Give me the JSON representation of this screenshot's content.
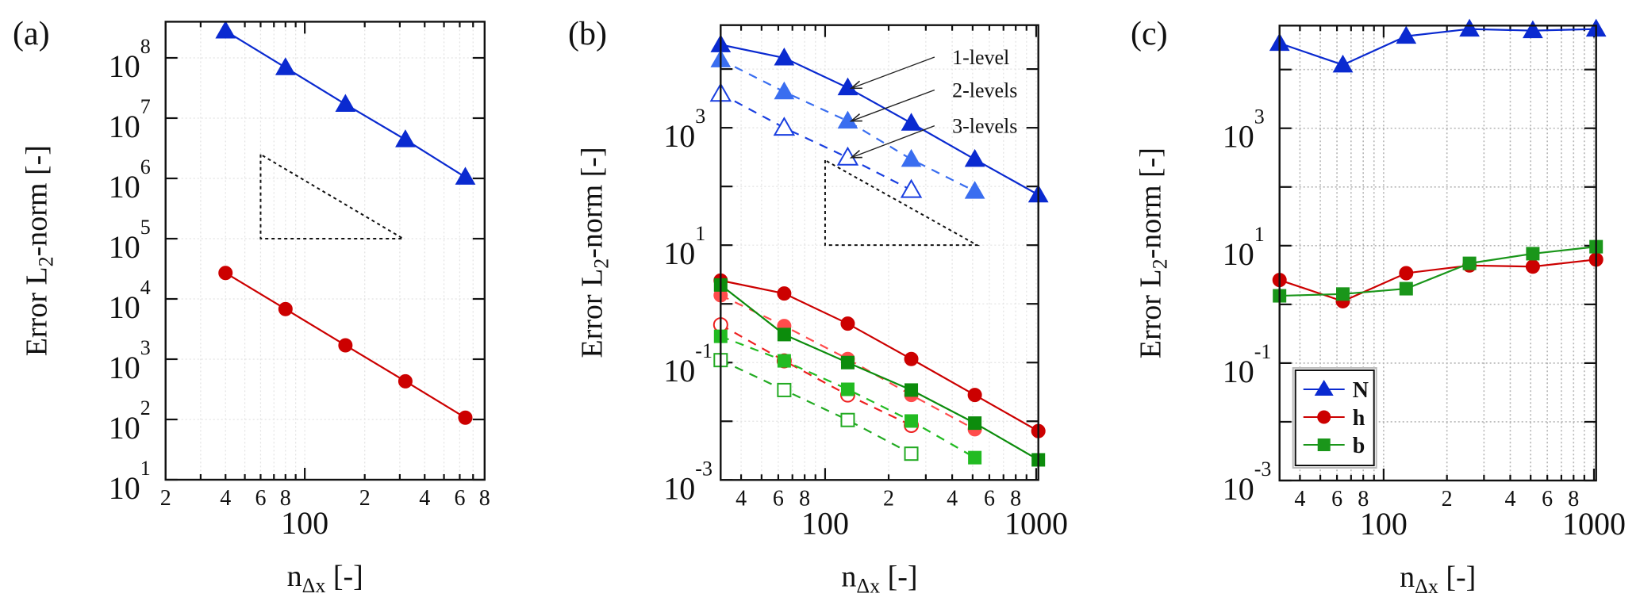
{
  "chart_data": [
    {
      "panel": "(a)",
      "type": "line",
      "scale": "log-log",
      "xlabel": {
        "main": "n",
        "sub": "Δx",
        "rest": " [-]"
      },
      "ylabel": {
        "main": "Error L",
        "sub": "2",
        "rest": "-norm [-]"
      },
      "xlim": [
        20,
        800
      ],
      "ylim": [
        10,
        398000000
      ],
      "grid": "faint",
      "xticks": [
        {
          "value": 20,
          "label": "2"
        },
        {
          "value": 40,
          "label": "4"
        },
        {
          "value": 60,
          "label": "6"
        },
        {
          "value": 80,
          "label": "8"
        },
        {
          "value": 100,
          "label": "100",
          "major": true
        },
        {
          "value": 200,
          "label": "2"
        },
        {
          "value": 400,
          "label": "4"
        },
        {
          "value": 600,
          "label": "6"
        },
        {
          "value": 800,
          "label": "8"
        }
      ],
      "yticks": [
        {
          "value": 10,
          "base": "10",
          "exp": "1"
        },
        {
          "value": 100,
          "base": "10",
          "exp": "2"
        },
        {
          "value": 1000,
          "base": "10",
          "exp": "3"
        },
        {
          "value": 10000,
          "base": "10",
          "exp": "4"
        },
        {
          "value": 100000,
          "base": "10",
          "exp": "5"
        },
        {
          "value": 1000000,
          "base": "10",
          "exp": "6"
        },
        {
          "value": 10000000,
          "base": "10",
          "exp": "7"
        },
        {
          "value": 100000000,
          "base": "10",
          "exp": "8"
        }
      ],
      "series": [
        {
          "name": "N",
          "x": [
            40,
            80,
            160,
            320,
            640
          ],
          "y": [
            280000000,
            69000000,
            17000000,
            4400000,
            1050000
          ],
          "color": "#0a2ad0",
          "dash": "solid",
          "marker": "triangle",
          "fill": "filled"
        },
        {
          "name": "h",
          "x": [
            40,
            80,
            160,
            320,
            640
          ],
          "y": [
            27000,
            6800,
            1700,
            430,
            107
          ],
          "color": "#cc0000",
          "dash": "solid",
          "marker": "circle",
          "fill": "filled"
        }
      ],
      "slope_triangle": {
        "points": [
          [
            60,
            2500000
          ],
          [
            60,
            100000
          ],
          [
            312,
            100000
          ]
        ],
        "slope": -2
      }
    },
    {
      "panel": "(b)",
      "type": "line",
      "scale": "log-log",
      "xlabel": {
        "main": "n",
        "sub": "Δx",
        "rest": " [-]"
      },
      "ylabel": {
        "main": "Error L",
        "sub": "2",
        "rest": "-norm [-]"
      },
      "xlim": [
        32,
        1024
      ],
      "ylim": [
        0.001,
        56000
      ],
      "grid": "faint",
      "xticks": [
        {
          "value": 40,
          "label": "4"
        },
        {
          "value": 60,
          "label": "6"
        },
        {
          "value": 80,
          "label": "8"
        },
        {
          "value": 100,
          "label": "100",
          "major": true
        },
        {
          "value": 200,
          "label": "2"
        },
        {
          "value": 400,
          "label": "4"
        },
        {
          "value": 600,
          "label": "6"
        },
        {
          "value": 800,
          "label": "8"
        },
        {
          "value": 1000,
          "label": "1000",
          "major": true
        }
      ],
      "yticks": [
        {
          "value": 0.001,
          "base": "10",
          "exp": "-3"
        },
        {
          "value": 0.01
        },
        {
          "value": 0.1,
          "base": "10",
          "exp": "-1"
        },
        {
          "value": 1
        },
        {
          "value": 10,
          "base": "10",
          "exp": "1"
        },
        {
          "value": 100
        },
        {
          "value": 1000,
          "base": "10",
          "exp": "3"
        },
        {
          "value": 10000
        }
      ],
      "series": [
        {
          "name": "N 1-level",
          "x": [
            32,
            64,
            128,
            256,
            512,
            1024
          ],
          "y": [
            26000,
            15500,
            4800,
            1200,
            290,
            72
          ],
          "color": "#0a2ad0",
          "dash": "solid",
          "marker": "triangle",
          "fill": "filled"
        },
        {
          "name": "N 2-levels",
          "x": [
            32,
            64,
            128,
            256,
            512
          ],
          "y": [
            14400,
            4100,
            1300,
            290,
            83
          ],
          "color": "#3a6ef0",
          "dash": "dashed",
          "marker": "triangle",
          "fill": "light"
        },
        {
          "name": "N 3-levels",
          "x": [
            32,
            64,
            128,
            256
          ],
          "y": [
            3800,
            1000,
            310,
            87
          ],
          "color": "#1a3fe0",
          "dash": "dashed",
          "marker": "triangle",
          "fill": "hollow"
        },
        {
          "name": "h 1-level",
          "x": [
            32,
            64,
            128,
            256,
            512,
            1024
          ],
          "y": [
            2.5,
            1.5,
            0.46,
            0.115,
            0.028,
            0.0068
          ],
          "color": "#cc0000",
          "dash": "solid",
          "marker": "circle",
          "fill": "filled"
        },
        {
          "name": "h 2-levels",
          "x": [
            32,
            64,
            128,
            256,
            512
          ],
          "y": [
            1.4,
            0.42,
            0.115,
            0.028,
            0.0073
          ],
          "color": "#ff4c4c",
          "dash": "dashed",
          "marker": "circle",
          "fill": "light"
        },
        {
          "name": "h 3-levels",
          "x": [
            32,
            64,
            128,
            256
          ],
          "y": [
            0.44,
            0.107,
            0.028,
            0.0085
          ],
          "color": "#ee2020",
          "dash": "dashed",
          "marker": "circle",
          "fill": "hollow"
        },
        {
          "name": "b 1-level",
          "x": [
            32,
            64,
            128,
            256,
            512,
            1024
          ],
          "y": [
            2.1,
            0.3,
            0.1,
            0.034,
            0.0093,
            0.0022
          ],
          "color": "#0c8c0c",
          "dash": "solid",
          "marker": "square",
          "fill": "filled"
        },
        {
          "name": "b 2-levels",
          "x": [
            32,
            64,
            128,
            256,
            512
          ],
          "y": [
            0.28,
            0.107,
            0.035,
            0.0101,
            0.0024
          ],
          "color": "#22bb22",
          "dash": "dashed",
          "marker": "square",
          "fill": "light"
        },
        {
          "name": "b 3-levels",
          "x": [
            32,
            64,
            128,
            256
          ],
          "y": [
            0.11,
            0.034,
            0.0105,
            0.0028
          ],
          "color": "#22aa22",
          "dash": "dashed",
          "marker": "square",
          "fill": "hollow"
        }
      ],
      "slope_triangle": {
        "points": [
          [
            100,
            280
          ],
          [
            100,
            10
          ],
          [
            525,
            10
          ]
        ],
        "slope": -2
      },
      "annotations": [
        {
          "text": "1-level",
          "at": [
            400,
            16000
          ],
          "arrow_from": [
            330,
            16000
          ],
          "arrow_to": [
            133,
            4700
          ]
        },
        {
          "text": "2-levels",
          "at": [
            400,
            4400
          ],
          "arrow_from": [
            330,
            4400
          ],
          "arrow_to": [
            133,
            1300
          ]
        },
        {
          "text": "3-levels",
          "at": [
            400,
            1080
          ],
          "arrow_from": [
            330,
            1080
          ],
          "arrow_to": [
            133,
            310
          ]
        }
      ]
    },
    {
      "panel": "(c)",
      "type": "line",
      "scale": "log-log",
      "xlabel": {
        "main": "n",
        "sub": "Δx",
        "rest": " [-]"
      },
      "ylabel": {
        "main": "Error L",
        "sub": "2",
        "rest": "-norm [-]"
      },
      "xlim": [
        32,
        1024
      ],
      "ylim": [
        0.001,
        56000
      ],
      "grid": "dotted",
      "legend": "lower-left",
      "xticks": [
        {
          "value": 40,
          "label": "4"
        },
        {
          "value": 60,
          "label": "6"
        },
        {
          "value": 80,
          "label": "8"
        },
        {
          "value": 100,
          "label": "100",
          "major": true
        },
        {
          "value": 200,
          "label": "2"
        },
        {
          "value": 400,
          "label": "4"
        },
        {
          "value": 600,
          "label": "6"
        },
        {
          "value": 800,
          "label": "8"
        },
        {
          "value": 1000,
          "label": "1000",
          "major": true
        }
      ],
      "yticks": [
        {
          "value": 0.001,
          "base": "10",
          "exp": "-3"
        },
        {
          "value": 0.01
        },
        {
          "value": 0.1,
          "base": "10",
          "exp": "-1"
        },
        {
          "value": 1
        },
        {
          "value": 10,
          "base": "10",
          "exp": "1"
        },
        {
          "value": 100
        },
        {
          "value": 1000,
          "base": "10",
          "exp": "3"
        },
        {
          "value": 10000
        }
      ],
      "series": [
        {
          "name": "N",
          "x": [
            32,
            64,
            128,
            256,
            512,
            1024
          ],
          "y": [
            28000,
            12000,
            37000,
            49000,
            46000,
            49000
          ],
          "color": "#0a2ad0",
          "dash": "solid",
          "marker": "triangle",
          "fill": "filled"
        },
        {
          "name": "h",
          "x": [
            32,
            64,
            128,
            256,
            512,
            1024
          ],
          "y": [
            2.6,
            1.13,
            3.4,
            4.6,
            4.4,
            5.8
          ],
          "color": "#cc0000",
          "dash": "solid",
          "marker": "circle",
          "fill": "filled"
        },
        {
          "name": "b",
          "x": [
            32,
            64,
            128,
            256,
            512,
            1024
          ],
          "y": [
            1.4,
            1.5,
            1.85,
            5.0,
            7.3,
            9.6
          ],
          "color": "#1a961a",
          "dash": "solid",
          "marker": "square",
          "fill": "filled"
        }
      ]
    }
  ]
}
